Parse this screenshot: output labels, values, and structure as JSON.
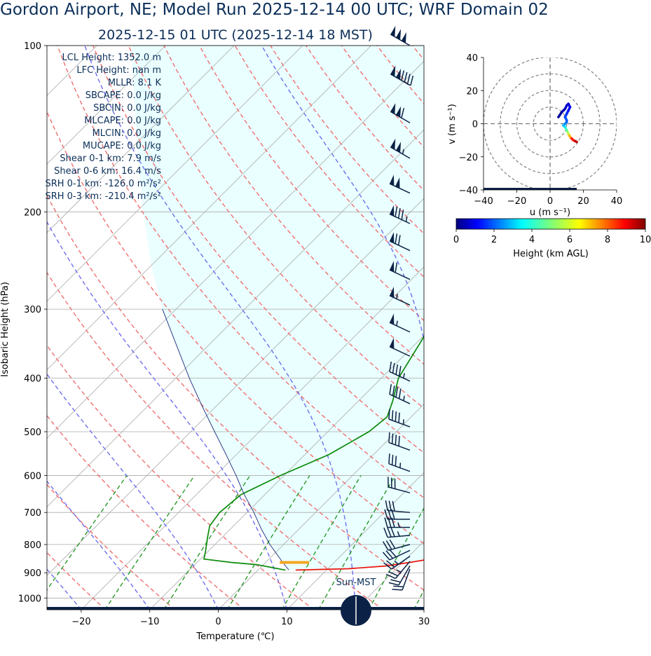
{
  "title": "Gordon Airport, NE; Model Run 2025-12-14 00 UTC; WRF Domain 02",
  "subtitle": "2025-12-15 01 UTC  (2025-12-14 18 MST)",
  "colors": {
    "title": "#0b2f5a",
    "temperature": "#e8140c",
    "dewpoint": "#0a8a0a",
    "parcel": "#1a2a7a",
    "dry_adiabat": "#f07070",
    "moist_adiabat": "#6f6fef",
    "mixing_ratio": "#2a9a2a",
    "cape_fill": "#eaffff",
    "lcl_marker": "#f5a623",
    "barb": "#0b2246",
    "sun": "#0b2246"
  },
  "chart_data": {
    "type": "line",
    "skewt": {
      "xlabel": "Temperature (℃)",
      "ylabel": "Isobaric Height (hPa)",
      "xlim": [
        -25,
        30
      ],
      "ylim": [
        1050,
        100
      ],
      "log_y": true,
      "grid": true,
      "x_ticks": [
        -20,
        -10,
        0,
        10,
        20,
        30
      ],
      "y_ticks": [
        100,
        200,
        300,
        400,
        500,
        600,
        700,
        800,
        900,
        1000
      ],
      "series": [
        {
          "key": "temperature",
          "values": [
            [
              890,
              5.5
            ],
            [
              885,
              13
            ],
            [
              875,
              18
            ],
            [
              862,
              21
            ],
            [
              850,
              23.5
            ],
            [
              835,
              24
            ],
            [
              820,
              23.5
            ],
            [
              780,
              21.5
            ],
            [
              740,
              19.7
            ],
            [
              700,
              18.8
            ],
            [
              650,
              15.8
            ],
            [
              600,
              12.6
            ],
            [
              550,
              8.8
            ],
            [
              500,
              5
            ],
            [
              450,
              1
            ],
            [
              400,
              -2.5
            ],
            [
              350,
              -5.5
            ],
            [
              300,
              -7.5
            ],
            [
              250,
              -7.8
            ],
            [
              220,
              -6.5
            ],
            [
              200,
              -5
            ],
            [
              180,
              -3
            ],
            [
              160,
              -0.5
            ],
            [
              140,
              1.5
            ],
            [
              125,
              2.8
            ],
            [
              110,
              5.5
            ],
            [
              100,
              8.5
            ]
          ]
        },
        {
          "key": "dewpoint",
          "values": [
            [
              890,
              4
            ],
            [
              880,
              1.5
            ],
            [
              870,
              -1
            ],
            [
              862,
              -5
            ],
            [
              850,
              -9.5
            ],
            [
              820,
              -10.5
            ],
            [
              780,
              -12
            ],
            [
              740,
              -13.5
            ],
            [
              700,
              -14
            ],
            [
              650,
              -13.5
            ],
            [
              600,
              -10.5
            ],
            [
              550,
              -6.5
            ],
            [
              500,
              -4
            ],
            [
              470,
              -3.5
            ],
            [
              440,
              -5
            ],
            [
              400,
              -7.5
            ],
            [
              350,
              -9.3
            ],
            [
              320,
              -10.5
            ],
            [
              290,
              -13
            ],
            [
              250,
              -13.5
            ],
            [
              220,
              -13.2
            ],
            [
              200,
              -13.5
            ],
            [
              180,
              -14
            ],
            [
              160,
              -14.3
            ],
            [
              150,
              -14.8
            ],
            [
              140,
              -14
            ],
            [
              125,
              -10
            ],
            [
              110,
              -5
            ],
            [
              100,
              -1.5
            ]
          ]
        },
        {
          "key": "parcel",
          "values": [
            [
              890,
              4.5
            ],
            [
              862,
              2.5
            ],
            [
              800,
              -2
            ],
            [
              750,
              -5.5
            ],
            [
              700,
              -9
            ],
            [
              650,
              -13
            ],
            [
              600,
              -17
            ],
            [
              550,
              -21.5
            ],
            [
              500,
              -26.5
            ],
            [
              450,
              -32
            ],
            [
              400,
              -38
            ],
            [
              350,
              -44.5
            ],
            [
              300,
              -52
            ]
          ]
        }
      ],
      "lcl": {
        "pressure": 862,
        "temperature": 4.2
      }
    },
    "stats": [
      {
        "label": "LCL Height",
        "value": "1352.0 m"
      },
      {
        "label": "LFC Height",
        "value": "nan m"
      },
      {
        "label": "MLLR",
        "value": "8.1 K"
      },
      {
        "label": "SBCAPE",
        "value": "0.0 J/kg"
      },
      {
        "label": "SBCIN",
        "value": "0.0 J/kg"
      },
      {
        "label": "MLCAPE",
        "value": "0.0 J/kg"
      },
      {
        "label": "MLCIN",
        "value": "0.0 J/kg"
      },
      {
        "label": "MUCAPE",
        "value": "0.0 J/kg"
      },
      {
        "label": "Shear 0-1 km",
        "value": "7.9 m/s"
      },
      {
        "label": "Shear 0-6 km",
        "value": "16.4 m/s"
      },
      {
        "label": "SRH 0-1 km",
        "value": "-126.0 m²/s²"
      },
      {
        "label": "SRH 0-3 km",
        "value": "-210.4 m²/s²"
      }
    ],
    "wind_barbs": [
      {
        "p": 100,
        "dir": 300,
        "spd": 150
      },
      {
        "p": 118,
        "dir": 300,
        "spd": 140
      },
      {
        "p": 138,
        "dir": 300,
        "spd": 110
      },
      {
        "p": 160,
        "dir": 300,
        "spd": 105
      },
      {
        "p": 185,
        "dir": 295,
        "spd": 100
      },
      {
        "p": 210,
        "dir": 295,
        "spd": 85
      },
      {
        "p": 235,
        "dir": 295,
        "spd": 70
      },
      {
        "p": 265,
        "dir": 295,
        "spd": 60
      },
      {
        "p": 295,
        "dir": 295,
        "spd": 55
      },
      {
        "p": 330,
        "dir": 295,
        "spd": 55
      },
      {
        "p": 365,
        "dir": 295,
        "spd": 50
      },
      {
        "p": 405,
        "dir": 295,
        "spd": 45
      },
      {
        "p": 445,
        "dir": 295,
        "spd": 45
      },
      {
        "p": 490,
        "dir": 290,
        "spd": 45
      },
      {
        "p": 540,
        "dir": 290,
        "spd": 40
      },
      {
        "p": 590,
        "dir": 290,
        "spd": 35
      },
      {
        "p": 645,
        "dir": 285,
        "spd": 30
      },
      {
        "p": 700,
        "dir": 275,
        "spd": 30
      },
      {
        "p": 720,
        "dir": 270,
        "spd": 30
      },
      {
        "p": 745,
        "dir": 270,
        "spd": 35
      },
      {
        "p": 770,
        "dir": 265,
        "spd": 35
      },
      {
        "p": 800,
        "dir": 255,
        "spd": 30
      },
      {
        "p": 820,
        "dir": 245,
        "spd": 30
      },
      {
        "p": 840,
        "dir": 235,
        "spd": 25
      },
      {
        "p": 858,
        "dir": 220,
        "spd": 25
      },
      {
        "p": 874,
        "dir": 210,
        "spd": 20
      },
      {
        "p": 886,
        "dir": 200,
        "spd": 20
      }
    ],
    "sun_label": "Sun-MST",
    "sun_hour_mst": 18,
    "hodograph": {
      "xlabel": "u (m s⁻¹)",
      "ylabel": "v (m s⁻¹)",
      "xlim": [
        -40,
        40
      ],
      "ylim": [
        -40,
        40
      ],
      "x_ticks": [
        -40,
        -20,
        0,
        20,
        40
      ],
      "y_ticks": [
        40,
        20,
        0,
        -20,
        -40
      ],
      "rings": [
        10,
        20,
        30,
        40
      ],
      "points": [
        [
          16,
          -11,
          9.8
        ],
        [
          14,
          -10,
          9
        ],
        [
          12,
          -8,
          8
        ],
        [
          11,
          -6,
          6
        ],
        [
          10,
          -4,
          5
        ],
        [
          9,
          -2,
          4
        ],
        [
          8,
          -1,
          3.2
        ],
        [
          9,
          0,
          2.8
        ],
        [
          10,
          1,
          2.4
        ],
        [
          10,
          2,
          2.2
        ],
        [
          9,
          4,
          2
        ],
        [
          10,
          6,
          1.8
        ],
        [
          11,
          8,
          1.5
        ],
        [
          12,
          10,
          1.2
        ],
        [
          11,
          12,
          1
        ],
        [
          10,
          11,
          0.8
        ],
        [
          9,
          9,
          0.6
        ],
        [
          7,
          7,
          0.4
        ],
        [
          5,
          4,
          0.2
        ]
      ]
    },
    "colorbar": {
      "label": "Height (km AGL)",
      "ticks": [
        0,
        2,
        4,
        6,
        8,
        10
      ],
      "range": [
        0,
        10
      ]
    }
  }
}
